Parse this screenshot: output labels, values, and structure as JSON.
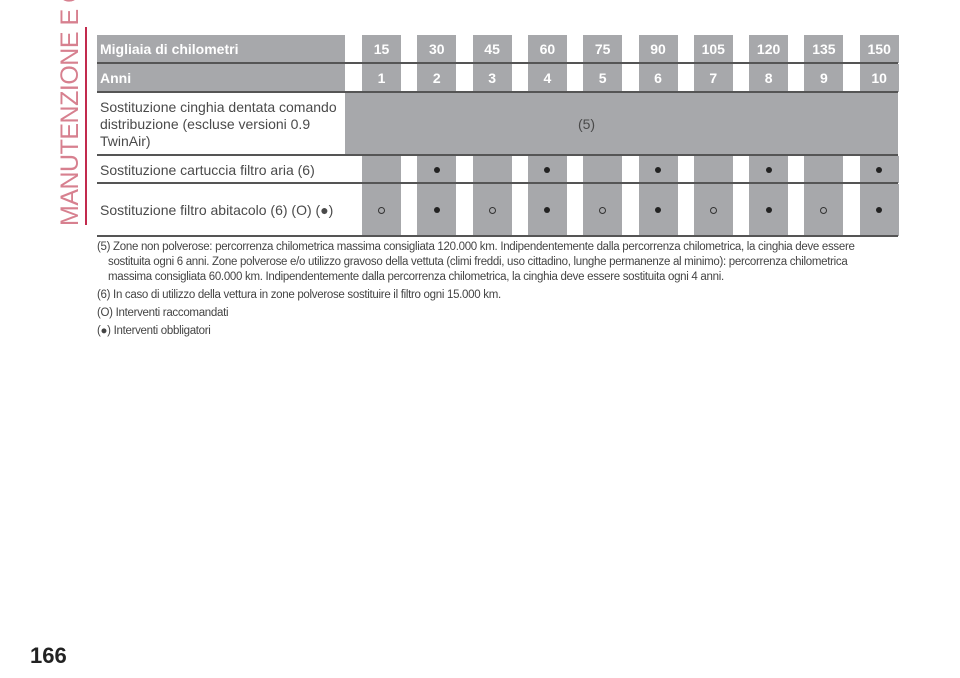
{
  "section_title": "MANUTENZIONE E CURA",
  "page_number": "166",
  "table": {
    "header_km_label": "Migliaia di chilometri",
    "km": [
      "15",
      "30",
      "45",
      "60",
      "75",
      "90",
      "105",
      "120",
      "135",
      "150"
    ],
    "header_years_label": "Anni",
    "years": [
      "1",
      "2",
      "3",
      "4",
      "5",
      "6",
      "7",
      "8",
      "9",
      "10"
    ],
    "rows": [
      {
        "label": "Sostituzione cinghia dentata comando distribuzione (escluse versioni 0.9 TwinAir)",
        "merged": "(5)"
      },
      {
        "label": "Sostituzione cartuccia filtro aria (6)",
        "marks": [
          "",
          "●",
          "",
          "●",
          "",
          "●",
          "",
          "●",
          "",
          "●"
        ]
      },
      {
        "label": "Sostituzione filtro abitacolo (6) (O) (●)",
        "marks": [
          "○",
          "●",
          "○",
          "●",
          "○",
          "●",
          "○",
          "●",
          "○",
          "●"
        ]
      }
    ]
  },
  "notes": [
    "(5) Zone non polverose: percorrenza chilometrica massima consigliata 120.000 km. Indipendentemente dalla percorrenza chilometrica, la cinghia deve essere sostituita ogni 6 anni. Zone polverose e/o utilizzo gravoso della vettuta (climi freddi, uso cittadino, lunghe permanenze al minimo): percorrenza chilometrica massima consigliata 60.000 km. Indipendentemente dalla percorrenza chilometrica, la cinghia deve essere sostituita ogni 4 anni.",
    "(6) In caso di utilizzo della vettura in zone polverose sostituire il filtro ogni 15.000 km.",
    "(O) Interventi raccomandati",
    "(●) Interventi obbligatori"
  ],
  "colors": {
    "cell_gray": "#a7a8ab",
    "accent": "#c22a4d"
  }
}
